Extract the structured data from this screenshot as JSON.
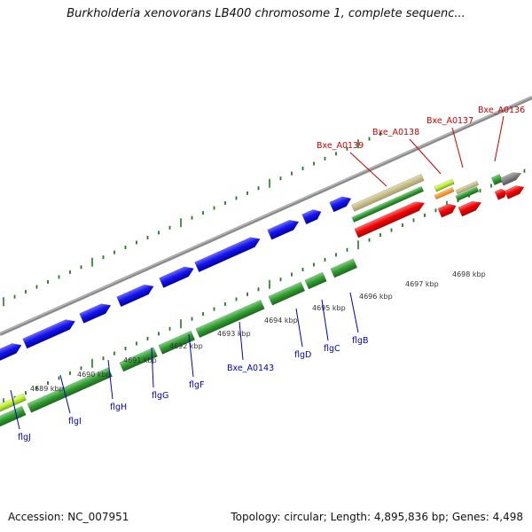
{
  "title": "Burkholderia xenovorans LB400 chromosome 1, complete sequenc...",
  "accession_label": "Accession: NC_007951",
  "summary_label": "Topology: circular; Length: 4,895,836 bp; Genes: 4,498",
  "colors": {
    "blue_gene": "#1010e8",
    "green_track": "#2e8b2e",
    "red_gene": "#ee0000",
    "label_blue": "#0000c0",
    "label_red": "#cc0000",
    "backbone": "#8a8a8a",
    "tick": "#1e7b1e"
  },
  "scale_labels": [
    "4689 kbp",
    "4690 kbp",
    "4691 kbp",
    "4692 kbp",
    "4693 kbp",
    "4694 kbp",
    "4695 kbp",
    "4696 kbp",
    "4697 kbp",
    "4698 kbp"
  ],
  "genes_lower": [
    "flgJ",
    "flgI",
    "flgH",
    "flgG",
    "flgF",
    "Bxe_A0143",
    "flgD",
    "flgC",
    "flgB"
  ],
  "genes_upper": [
    "Bxe_A0139",
    "Bxe_A0138",
    "Bxe_A0137",
    "Bxe_A0136"
  ]
}
